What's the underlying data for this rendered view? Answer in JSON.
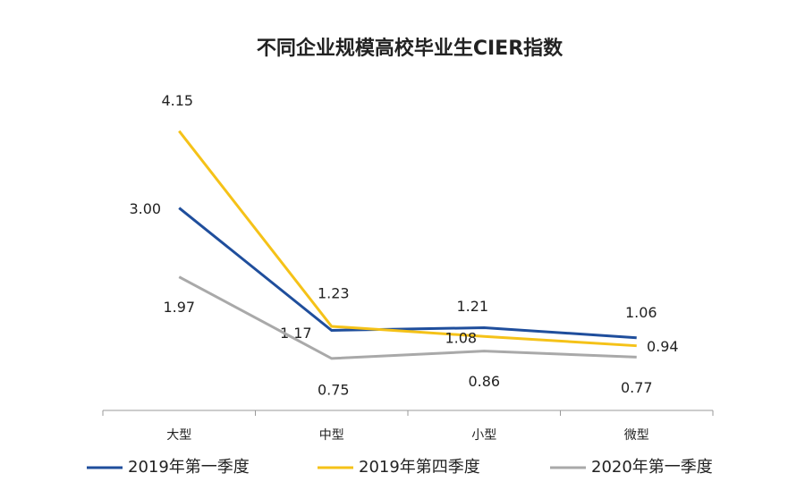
{
  "chart_data": {
    "type": "line",
    "title": "不同企业规模高校毕业生CIER指数",
    "categories": [
      "大型",
      "中型",
      "小型",
      "微型"
    ],
    "series": [
      {
        "name": "2019年第一季度",
        "color": "#1f4e9c",
        "values": [
          3.0,
          1.17,
          1.21,
          1.06
        ],
        "value_labels": [
          "3.00",
          "1.17",
          "1.21",
          "1.06"
        ]
      },
      {
        "name": "2019年第四季度",
        "color": "#f5c218",
        "values": [
          4.15,
          1.23,
          1.08,
          0.94
        ]
      },
      {
        "name": "2020年第一季度",
        "color": "#a9a9a9",
        "values": [
          1.97,
          0.75,
          0.86,
          0.77
        ]
      }
    ],
    "ylim": [
      0,
      5
    ],
    "legend": "bottom"
  }
}
